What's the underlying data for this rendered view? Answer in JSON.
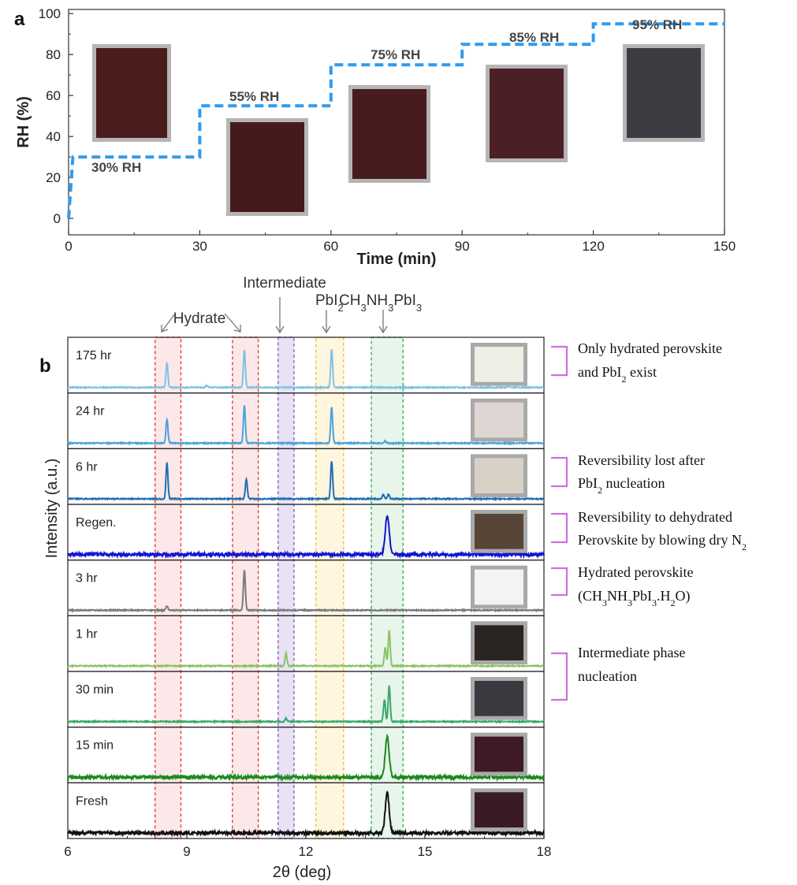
{
  "panel_a": {
    "letter": "a",
    "chart_data": {
      "type": "line",
      "xlabel": "Time (min)",
      "ylabel": "RH (%)",
      "xlim": [
        0,
        150
      ],
      "ylim": [
        -8,
        102
      ],
      "xticks": [
        0,
        30,
        60,
        90,
        120,
        150
      ],
      "yticks": [
        0,
        20,
        40,
        60,
        80,
        100
      ],
      "color": "#2d9bf0",
      "x": [
        0,
        1,
        30,
        30,
        60,
        60,
        90,
        90,
        120,
        120,
        150
      ],
      "y": [
        0,
        30,
        30,
        55,
        55,
        75,
        75,
        85,
        85,
        95,
        95
      ],
      "annotations": [
        "30% RH",
        "55% RH",
        "75% RH",
        "85% RH",
        "95% RH"
      ],
      "sample_photo_colors": [
        "#4a1c1c",
        "#461a1c",
        "#481b1d",
        "#4c1f26",
        "#3d3c42"
      ]
    }
  },
  "panel_b": {
    "letter": "b",
    "chart_data": {
      "type": "line",
      "xlabel": "2θ (deg)",
      "ylabel": "Intensity (a.u.)",
      "xlim": [
        6,
        18
      ],
      "xticks": [
        6,
        9,
        12,
        15,
        18
      ],
      "series": [
        {
          "name": "175 hr",
          "color": "#7ec3e6",
          "photo": "#efefe6",
          "peaks": [
            [
              8.5,
              0.62
            ],
            [
              10.45,
              0.95
            ],
            [
              12.65,
              0.95
            ],
            [
              9.5,
              0.05
            ],
            [
              17.1,
              0.03
            ]
          ]
        },
        {
          "name": "24 hr",
          "color": "#4aa3dc",
          "photo": "#ddd6d2",
          "peaks": [
            [
              8.5,
              0.6
            ],
            [
              10.45,
              0.95
            ],
            [
              12.65,
              0.9
            ],
            [
              14.0,
              0.05
            ]
          ]
        },
        {
          "name": "6 hr",
          "color": "#1f6fb5",
          "photo": "#d8d1c6",
          "peaks": [
            [
              8.5,
              0.9
            ],
            [
              10.5,
              0.5
            ],
            [
              12.65,
              0.95
            ],
            [
              13.95,
              0.1
            ],
            [
              14.08,
              0.12
            ]
          ]
        },
        {
          "name": "Regen.",
          "color": "#1414d2",
          "photo": "#574638",
          "peaks": [
            [
              14.05,
              1.0
            ]
          ],
          "broad": true
        },
        {
          "name": "3 hr",
          "color": "#7a7a7a",
          "photo": "#f3f3f3",
          "peaks": [
            [
              8.5,
              0.1
            ],
            [
              10.45,
              1.0
            ]
          ]
        },
        {
          "name": "1 hr",
          "color": "#8cc267",
          "photo": "#2b2522",
          "peaks": [
            [
              11.5,
              0.32
            ],
            [
              14.0,
              0.45
            ],
            [
              14.1,
              0.9
            ]
          ]
        },
        {
          "name": "30 min",
          "color": "#38a86a",
          "photo": "#3a3940",
          "peaks": [
            [
              11.5,
              0.08
            ],
            [
              13.98,
              0.55
            ],
            [
              14.1,
              0.9
            ]
          ]
        },
        {
          "name": "15 min",
          "color": "#1a8a1a",
          "photo": "#3d1a24",
          "peaks": [
            [
              14.05,
              1.0
            ]
          ],
          "broad": true
        },
        {
          "name": "Fresh",
          "color": "#111111",
          "photo": "#3a1a24",
          "peaks": [
            [
              14.05,
              1.0
            ]
          ],
          "broad": true
        }
      ],
      "regions": [
        {
          "label": "Hydrate",
          "x0": 8.2,
          "x1": 8.85,
          "color": "#e04040",
          "fill": "#fbe0e0"
        },
        {
          "label": "Hydrate",
          "x0": 10.15,
          "x1": 10.8,
          "color": "#e04040",
          "fill": "#fbe0e0"
        },
        {
          "label": "Intermediate",
          "x0": 11.3,
          "x1": 11.7,
          "color": "#8a60c0",
          "fill": "#e2d8f0"
        },
        {
          "label": "PbI2",
          "x0": 12.25,
          "x1": 12.95,
          "color": "#f0c040",
          "fill": "#fdf3d4"
        },
        {
          "label": "CH3NH3PbI3",
          "x0": 13.65,
          "x1": 14.45,
          "color": "#3cb060",
          "fill": "#dff2e4"
        }
      ],
      "region_labels": {
        "hydrate": "Hydrate",
        "intermediate": "Intermediate",
        "pbi2": "PbI",
        "pbi2_sub": "2",
        "mapbi_a": "CH",
        "mapbi_sub1": "3",
        "mapbi_b": "NH",
        "mapbi_sub2": "3",
        "mapbi_c": "PbI",
        "mapbi_sub3": "3"
      }
    },
    "notes": {
      "n1_line1": "Only hydrated perovskite",
      "n1_line2": "and PbI",
      "n1_line2_sub": "2",
      "n1_line2_tail": " exist",
      "n2_line1": "Reversibility lost after",
      "n2_line2": "PbI",
      "n2_line2_sub": "2",
      "n2_line2_tail": " nucleation",
      "n3_line1": "Reversibility to dehydrated",
      "n3_line2": "Perovskite by blowing dry N",
      "n3_line2_sub": "2",
      "n4_line1": "Hydrated perovskite",
      "n4_a": "(CH",
      "n4_s1": "3",
      "n4_b": "NH",
      "n4_s2": "3",
      "n4_c": "PbI",
      "n4_s3": "3",
      "n4_d": ".H",
      "n4_s4": "2",
      "n4_e": "O)",
      "n5_line1": "Intermediate phase",
      "n5_line2": "nucleation"
    },
    "bracket_color": "#d070e0"
  }
}
